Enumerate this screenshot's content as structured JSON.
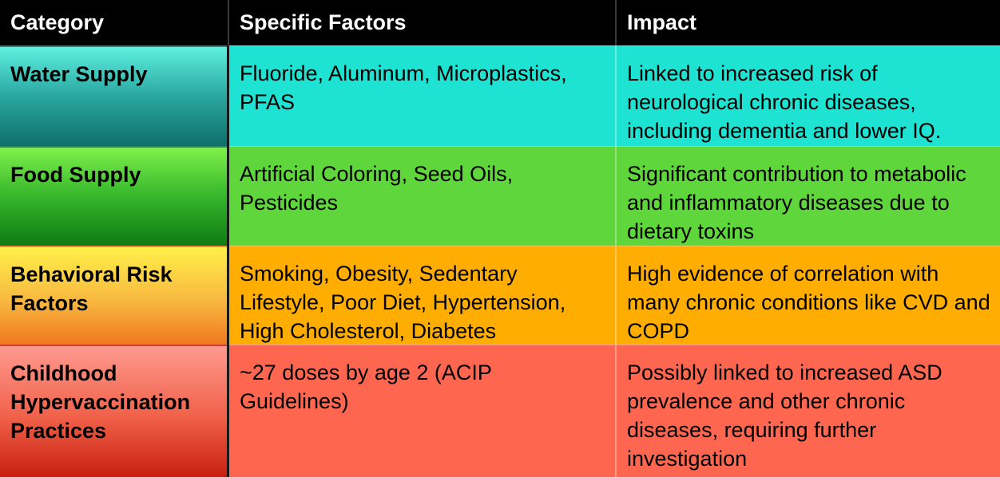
{
  "headers": {
    "category": "Category",
    "factors": "Specific Factors",
    "impact": "Impact"
  },
  "rows": [
    {
      "category": "Water Supply",
      "factors": "Fluoride, Aluminum, Microplastics, PFAS",
      "impact": "Linked to increased risk of neurological chronic diseases, including dementia and lower IQ."
    },
    {
      "category": "Food Supply",
      "factors": "Artificial Coloring, Seed Oils, Pesticides",
      "impact": "Significant contribution to metabolic and inflammatory diseases due to dietary toxins"
    },
    {
      "category": "Behavioral Risk Factors",
      "factors": "Smoking, Obesity, Sedentary Lifestyle, Poor Diet, Hypertension, High Cholesterol, Diabetes",
      "impact": "High evidence of correlation with many chronic conditions like CVD and COPD"
    },
    {
      "category": "Childhood Hypervaccination Practices",
      "factors": "~27 doses by age 2 (ACIP Guidelines)",
      "impact": "Possibly linked to increased ASD prevalence and other chronic diseases, requiring further investigation"
    }
  ],
  "colors": {
    "header_bg": "#000000",
    "water": "#1ee3d2",
    "food": "#5fd63b",
    "behavioral": "#ffad00",
    "childhood": "#ff6650"
  }
}
